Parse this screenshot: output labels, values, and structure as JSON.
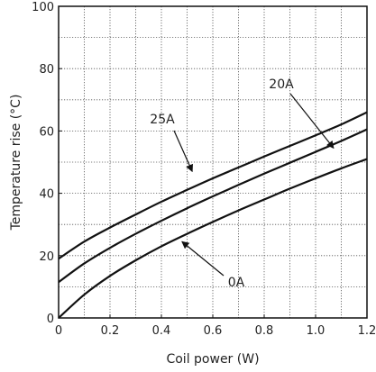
{
  "chart_data": {
    "type": "line",
    "title": "",
    "xlabel": "Coil power (W)",
    "ylabel": "Temperature rise (°C)",
    "xlim": [
      0,
      1.2
    ],
    "ylim": [
      0,
      100
    ],
    "x_ticks": [
      0,
      0.2,
      0.4,
      0.6,
      0.8,
      1.0,
      1.2
    ],
    "x_tick_labels": [
      "0",
      "0.2",
      "0.4",
      "0.6",
      "0.8",
      "1.0",
      "1.2"
    ],
    "y_ticks": [
      0,
      20,
      40,
      60,
      80,
      100
    ],
    "y_tick_labels": [
      "0",
      "20",
      "40",
      "60",
      "80",
      "100"
    ],
    "grid": true,
    "legend": "none",
    "series": [
      {
        "name": "25A",
        "x": [
          0,
          0.1,
          0.2,
          0.3,
          0.4,
          0.5,
          0.6,
          0.7,
          0.8,
          0.9,
          1.0,
          1.1,
          1.2
        ],
        "values": [
          19,
          24.5,
          29,
          33.2,
          37.3,
          41.1,
          44.8,
          48.3,
          51.8,
          55.2,
          58.6,
          62.1,
          66
        ]
      },
      {
        "name": "20A",
        "x": [
          0,
          0.1,
          0.2,
          0.3,
          0.4,
          0.5,
          0.6,
          0.7,
          0.8,
          0.9,
          1.0,
          1.1,
          1.2
        ],
        "values": [
          11.5,
          17.5,
          22.5,
          27,
          31.2,
          35.2,
          39,
          42.7,
          46.3,
          49.8,
          53.3,
          56.8,
          60.5
        ]
      },
      {
        "name": "0A",
        "x": [
          0,
          0.1,
          0.2,
          0.3,
          0.4,
          0.5,
          0.6,
          0.7,
          0.8,
          0.9,
          1.0,
          1.1,
          1.2
        ],
        "values": [
          0,
          7.5,
          13.5,
          18.5,
          23,
          27,
          30.8,
          34.5,
          38,
          41.5,
          44.8,
          48,
          51
        ]
      }
    ],
    "annotations": [
      {
        "text": "25A",
        "series": "25A",
        "point": [
          0.52,
          47
        ]
      },
      {
        "text": "20A",
        "series": "20A",
        "point": [
          1.07,
          54.5
        ]
      },
      {
        "text": "0A",
        "series": "0A",
        "point": [
          0.48,
          24.5
        ]
      }
    ]
  }
}
